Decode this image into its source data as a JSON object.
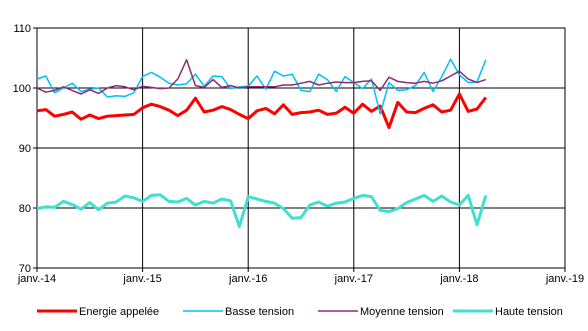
{
  "chart_data": {
    "type": "line",
    "title": "",
    "xlabel": "",
    "ylabel": "",
    "ylim": [
      70,
      110
    ],
    "yticks": [
      "70",
      "80",
      "90",
      "100",
      "110"
    ],
    "x_tick_labels": [
      "janv.-14",
      "janv.-15",
      "janv.-16",
      "janv.-17",
      "janv.-18",
      "janv.-19"
    ],
    "x_start": "2014-01",
    "x": [
      "2014-01",
      "2014-02",
      "2014-03",
      "2014-04",
      "2014-05",
      "2014-06",
      "2014-07",
      "2014-08",
      "2014-09",
      "2014-10",
      "2014-11",
      "2014-12",
      "2015-01",
      "2015-02",
      "2015-03",
      "2015-04",
      "2015-05",
      "2015-06",
      "2015-07",
      "2015-08",
      "2015-09",
      "2015-10",
      "2015-11",
      "2015-12",
      "2016-01",
      "2016-02",
      "2016-03",
      "2016-04",
      "2016-05",
      "2016-06",
      "2016-07",
      "2016-08",
      "2016-09",
      "2016-10",
      "2016-11",
      "2016-12",
      "2017-01",
      "2017-02",
      "2017-03",
      "2017-04",
      "2017-05",
      "2017-06",
      "2017-07",
      "2017-08",
      "2017-09",
      "2017-10",
      "2017-11",
      "2017-12",
      "2018-01",
      "2018-02",
      "2018-03",
      "2018-04"
    ],
    "grid": "horizontal-and-yearly-vertical",
    "legend_position": "bottom",
    "series": [
      {
        "name": "Energie appelée",
        "color": "#ff0000",
        "width": 3,
        "values": [
          96.2,
          96.4,
          95.3,
          95.6,
          96.0,
          94.8,
          95.5,
          94.9,
          95.3,
          95.4,
          95.5,
          95.6,
          96.7,
          97.3,
          96.9,
          96.3,
          95.4,
          96.3,
          98.3,
          96.0,
          96.3,
          96.9,
          96.4,
          95.6,
          94.9,
          96.2,
          96.6,
          95.7,
          97.2,
          95.6,
          95.9,
          96.0,
          96.3,
          95.6,
          95.8,
          96.8,
          95.8,
          97.3,
          96.1,
          97.0,
          93.4,
          97.6,
          96.0,
          95.9,
          96.6,
          97.2,
          96.0,
          96.3,
          99.0,
          96.1,
          96.5,
          98.4
        ]
      },
      {
        "name": "Basse tension",
        "color": "#00bfff",
        "width": 1.5,
        "values": [
          101.5,
          102.0,
          99.2,
          100.0,
          100.8,
          99.4,
          99.8,
          100.0,
          98.5,
          98.7,
          98.6,
          99.2,
          101.9,
          102.6,
          101.8,
          100.8,
          100.5,
          100.7,
          102.3,
          100.3,
          102.0,
          101.9,
          99.9,
          100.2,
          100.3,
          102.0,
          99.8,
          102.8,
          102.0,
          102.3,
          99.6,
          99.4,
          102.3,
          101.4,
          99.4,
          101.9,
          100.9,
          99.9,
          101.5,
          95.7,
          100.9,
          99.6,
          99.7,
          100.4,
          102.6,
          99.4,
          101.9,
          104.8,
          102.2,
          100.9,
          101.0,
          104.7
        ]
      },
      {
        "name": "Moyenne tension",
        "color": "#8b2d6e",
        "width": 1.5,
        "values": [
          100.0,
          99.3,
          99.6,
          100.2,
          99.6,
          99.0,
          99.7,
          99.1,
          100.0,
          100.4,
          100.2,
          99.7,
          100.3,
          100.1,
          99.9,
          100.0,
          101.5,
          104.7,
          100.4,
          100.1,
          101.4,
          100.1,
          100.4,
          100.0,
          100.2,
          100.2,
          100.2,
          100.2,
          100.5,
          100.5,
          100.8,
          101.1,
          100.5,
          100.8,
          101.0,
          100.9,
          100.9,
          101.1,
          101.2,
          99.6,
          101.8,
          101.1,
          100.9,
          100.8,
          101.1,
          100.8,
          101.2,
          102.0,
          102.8,
          101.5,
          100.9,
          101.4
        ]
      },
      {
        "name": "Haute tension",
        "color": "#40e0d0",
        "width": 3,
        "values": [
          79.9,
          80.2,
          80.1,
          81.1,
          80.6,
          79.8,
          80.9,
          79.7,
          80.8,
          81.0,
          82.0,
          81.7,
          81.1,
          82.1,
          82.2,
          81.1,
          81.0,
          81.6,
          80.5,
          81.1,
          80.8,
          81.5,
          81.2,
          76.9,
          81.9,
          81.5,
          81.1,
          80.8,
          79.9,
          78.3,
          78.4,
          80.5,
          81.0,
          80.3,
          80.8,
          81.0,
          81.6,
          82.1,
          81.9,
          79.6,
          79.4,
          79.9,
          80.9,
          81.5,
          82.1,
          81.1,
          82.0,
          81.0,
          80.5,
          82.1,
          77.2,
          82.1
        ]
      }
    ]
  }
}
